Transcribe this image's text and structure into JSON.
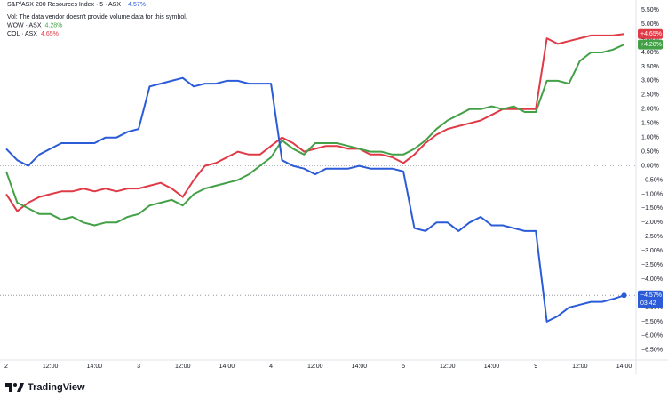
{
  "chart_data": {
    "type": "line",
    "note": "Vol: The data vendor doesn't provide volume data for this symbol.",
    "brand": "TradingView",
    "categories": [
      "2",
      null,
      null,
      null,
      "12:00",
      null,
      null,
      null,
      "14:00",
      null,
      null,
      null,
      "3",
      null,
      null,
      null,
      "12:00",
      null,
      null,
      null,
      "14:00",
      null,
      null,
      null,
      "4",
      null,
      null,
      null,
      "12:00",
      null,
      null,
      null,
      "14:00",
      null,
      null,
      null,
      "5",
      null,
      null,
      null,
      "12:00",
      null,
      null,
      null,
      "14:00",
      null,
      null,
      null,
      "9",
      null,
      null,
      null,
      "12:00",
      null,
      null,
      null,
      "14:00"
    ],
    "series": [
      {
        "name": "S&P/ASX 200 Resources Index · 5 · ASX",
        "color": "#2b5bd7",
        "legend_label": "−4.57%",
        "badge_label": "−4.57%",
        "countdown": "03:42",
        "values": [
          0.6,
          0.2,
          0.0,
          0.4,
          0.6,
          0.8,
          0.8,
          0.8,
          0.8,
          1.0,
          1.0,
          1.2,
          1.3,
          2.8,
          2.9,
          3.0,
          3.1,
          2.8,
          2.9,
          2.9,
          3.0,
          3.0,
          2.9,
          2.9,
          2.9,
          0.2,
          0.0,
          -0.1,
          -0.3,
          -0.1,
          -0.1,
          -0.1,
          0.0,
          -0.1,
          -0.1,
          -0.1,
          -0.2,
          -2.2,
          -2.3,
          -2.0,
          -2.0,
          -2.3,
          -2.0,
          -1.8,
          -2.1,
          -2.1,
          -2.2,
          -2.3,
          -2.3,
          -5.5,
          -5.3,
          -5.0,
          -4.9,
          -4.8,
          -4.8,
          -4.7,
          -4.57
        ]
      },
      {
        "name": "WOW · ASX",
        "color": "#43a047",
        "legend_label": "4.28%",
        "badge_label": "+4.28%",
        "values": [
          -0.2,
          -1.3,
          -1.5,
          -1.7,
          -1.7,
          -1.9,
          -1.8,
          -2.0,
          -2.1,
          -2.0,
          -2.0,
          -1.8,
          -1.7,
          -1.4,
          -1.3,
          -1.2,
          -1.4,
          -1.0,
          -0.8,
          -0.7,
          -0.6,
          -0.5,
          -0.3,
          0.0,
          0.3,
          0.9,
          0.6,
          0.4,
          0.8,
          0.8,
          0.8,
          0.7,
          0.6,
          0.5,
          0.5,
          0.4,
          0.4,
          0.6,
          0.9,
          1.3,
          1.6,
          1.8,
          2.0,
          2.0,
          2.1,
          2.0,
          2.1,
          1.9,
          1.9,
          3.0,
          3.0,
          2.9,
          3.7,
          4.0,
          4.0,
          4.1,
          4.28
        ]
      },
      {
        "name": "COL · ASX",
        "color": "#e03a47",
        "legend_label": "4.65%",
        "badge_label": "+4.65%",
        "values": [
          -1.0,
          -1.6,
          -1.3,
          -1.1,
          -1.0,
          -0.9,
          -0.9,
          -0.8,
          -0.9,
          -0.8,
          -0.9,
          -0.8,
          -0.8,
          -0.7,
          -0.6,
          -0.8,
          -1.1,
          -0.5,
          0.0,
          0.1,
          0.3,
          0.5,
          0.4,
          0.4,
          0.7,
          1.0,
          0.8,
          0.5,
          0.6,
          0.7,
          0.7,
          0.6,
          0.6,
          0.4,
          0.4,
          0.3,
          0.1,
          0.4,
          0.8,
          1.1,
          1.3,
          1.4,
          1.5,
          1.6,
          1.8,
          2.0,
          2.0,
          2.0,
          2.0,
          4.5,
          4.3,
          4.4,
          4.5,
          4.6,
          4.6,
          4.6,
          4.65
        ]
      }
    ],
    "ylim": [
      -6.85,
      5.85
    ],
    "yticks": [
      {
        "value": 5.5,
        "label": "5.50%"
      },
      {
        "value": 5.0,
        "label": "5.00%"
      },
      {
        "value": 4.5,
        "label": "4.50%"
      },
      {
        "value": 4.0,
        "label": "4.00%"
      },
      {
        "value": 3.5,
        "label": "3.50%"
      },
      {
        "value": 3.0,
        "label": "3.00%"
      },
      {
        "value": 2.5,
        "label": "2.50%"
      },
      {
        "value": 2.0,
        "label": "2.00%"
      },
      {
        "value": 1.5,
        "label": "1.50%"
      },
      {
        "value": 1.0,
        "label": "1.00%"
      },
      {
        "value": 0.5,
        "label": "0.50%"
      },
      {
        "value": 0,
        "label": "0.00%"
      },
      {
        "value": -0.5,
        "label": "−0.50%"
      },
      {
        "value": -1.0,
        "label": "−1.00%"
      },
      {
        "value": -1.5,
        "label": "−1.50%"
      },
      {
        "value": -2.0,
        "label": "−2.00%"
      },
      {
        "value": -2.5,
        "label": "−2.50%"
      },
      {
        "value": -3.0,
        "label": "−3.00%"
      },
      {
        "value": -3.5,
        "label": "−3.50%"
      },
      {
        "value": -4.0,
        "label": "−4.00%"
      },
      {
        "value": -4.5,
        "label": "−4.50%"
      },
      {
        "value": -5.0,
        "label": "−5.00%"
      },
      {
        "value": -5.5,
        "label": "−5.50%"
      },
      {
        "value": -6.0,
        "label": "−6.00%"
      },
      {
        "value": -6.5,
        "label": "−6.50%"
      }
    ]
  }
}
